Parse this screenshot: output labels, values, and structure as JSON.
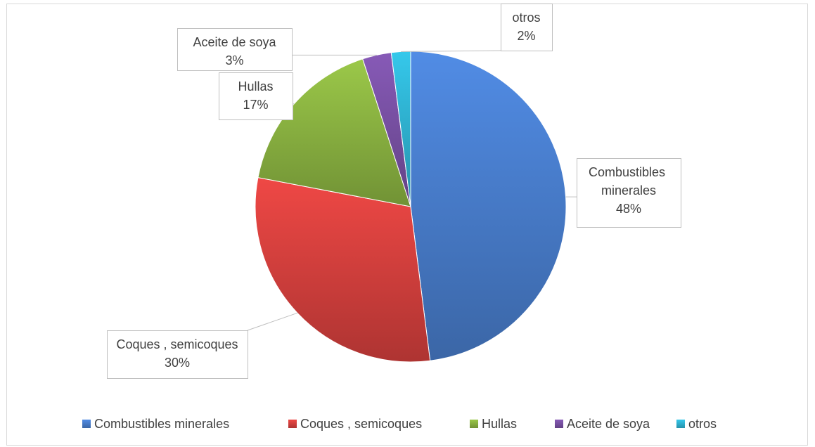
{
  "chart_data": {
    "type": "pie",
    "categories": [
      "Combustibles minerales",
      "Coques , semicoques",
      "Hullas",
      "Aceite de soya",
      "otros"
    ],
    "values": [
      48,
      30,
      17,
      3,
      2
    ],
    "value_labels": [
      "48%",
      "30%",
      "17%",
      "3%",
      "2%"
    ],
    "colors": [
      "#4a7fd0",
      "#d9413f",
      "#8db642",
      "#7b52a6",
      "#30b6d6"
    ],
    "legend": "bottom"
  }
}
